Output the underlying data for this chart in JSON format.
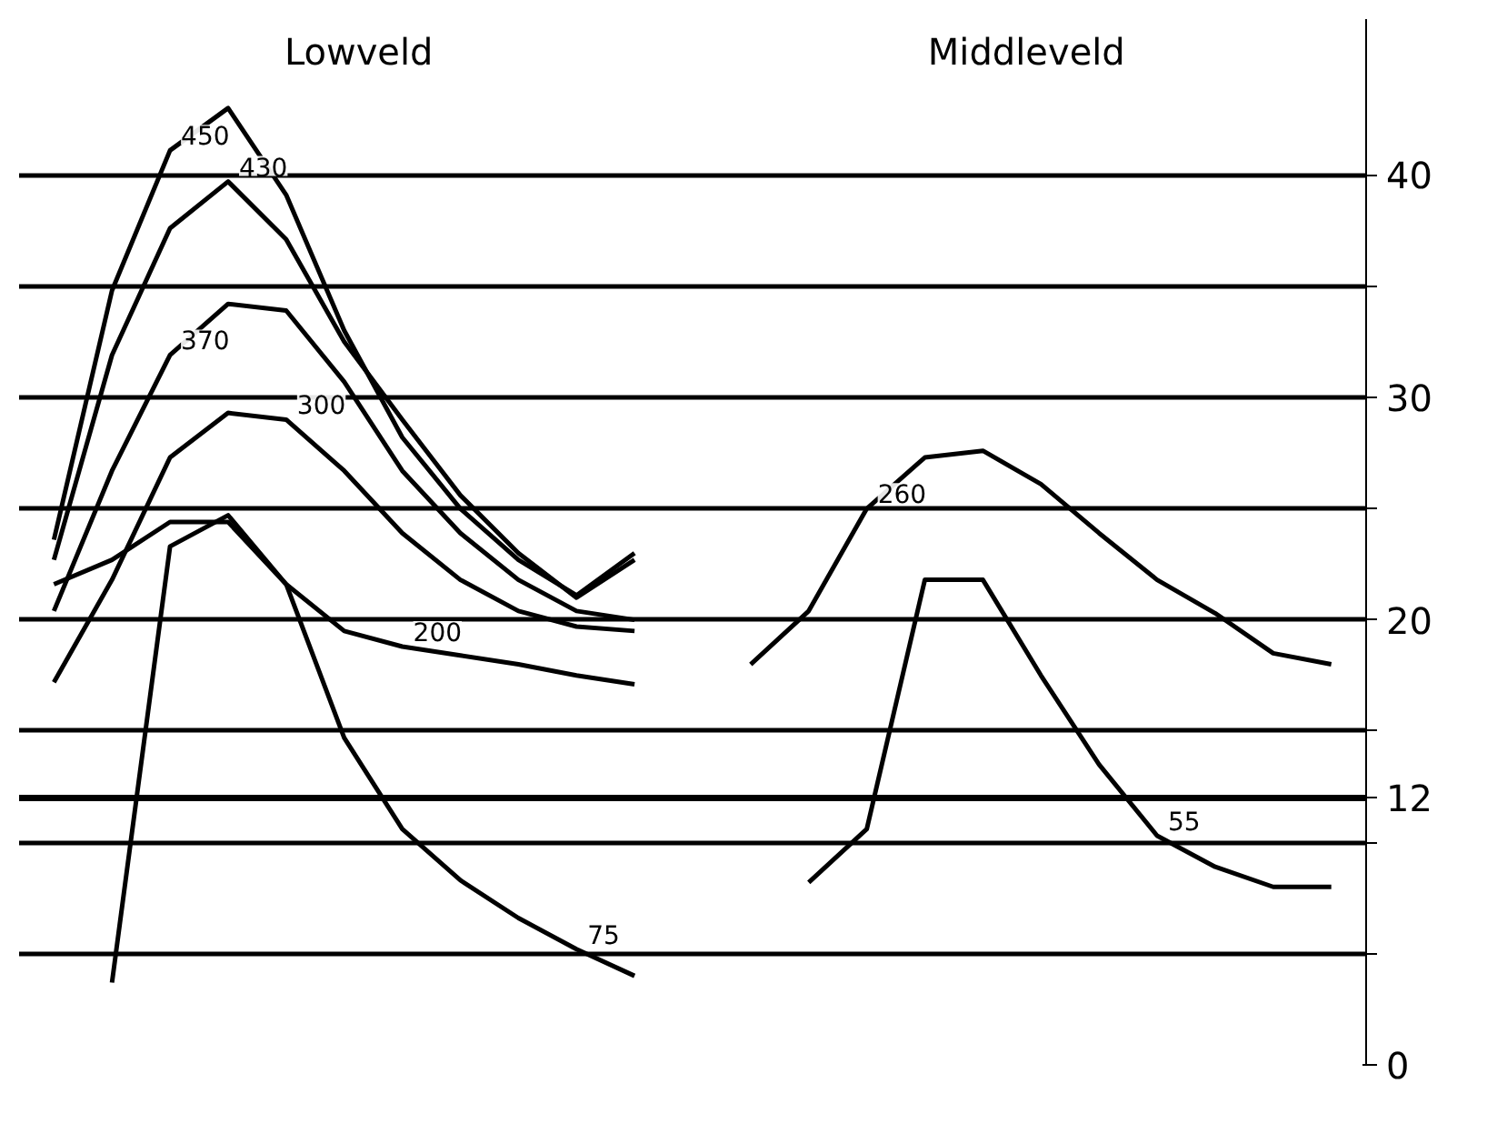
{
  "chart_data": {
    "type": "line",
    "categories": [
      null,
      null,
      null,
      null,
      null,
      null,
      null,
      null,
      null,
      null,
      null,
      null,
      null,
      null,
      null,
      null,
      null,
      null,
      null,
      null,
      null,
      null,
      null
    ],
    "ylim": [
      0,
      47
    ],
    "yticks": [
      0,
      {
        "value": 5,
        "label": null
      },
      {
        "value": 10,
        "label": null
      },
      12,
      {
        "value": 15,
        "label": null
      },
      20,
      {
        "value": 25,
        "label": null
      },
      30,
      {
        "value": 35,
        "label": null
      },
      40
    ],
    "grid": "y",
    "ref_lines": [
      {
        "axis": "y",
        "value": 12
      }
    ],
    "annotations": [
      "Lowveld",
      "Middleveld"
    ],
    "series": [
      {
        "name": "450",
        "color": "#000000",
        "values": [
          23.6,
          34.8,
          41.1,
          43.0,
          39.1,
          33.0,
          28.2,
          25.0,
          22.7,
          21.1,
          23.0,
          null,
          null,
          null,
          null,
          null,
          null,
          null,
          null,
          null,
          null,
          null,
          null
        ]
      },
      {
        "name": "430",
        "color": "#000000",
        "values": [
          22.7,
          31.9,
          37.6,
          39.7,
          37.1,
          32.5,
          29.0,
          25.6,
          23.0,
          21.0,
          22.7,
          null,
          null,
          null,
          null,
          null,
          null,
          null,
          null,
          null,
          null,
          null,
          null
        ]
      },
      {
        "name": "370",
        "color": "#000000",
        "values": [
          20.4,
          26.7,
          31.9,
          34.2,
          33.9,
          30.7,
          26.7,
          23.9,
          21.8,
          20.4,
          20.0,
          null,
          null,
          null,
          null,
          null,
          null,
          null,
          null,
          null,
          null,
          null,
          null
        ]
      },
      {
        "name": "300",
        "color": "#000000",
        "values": [
          17.2,
          21.8,
          27.3,
          29.3,
          29.0,
          26.7,
          23.9,
          21.8,
          20.4,
          19.7,
          19.5,
          null,
          null,
          null,
          null,
          null,
          null,
          null,
          null,
          null,
          null,
          null,
          null
        ]
      },
      {
        "name": "200",
        "color": "#000000",
        "values": [
          21.6,
          22.7,
          24.4,
          24.4,
          21.6,
          19.5,
          18.8,
          18.4,
          18.0,
          17.5,
          17.1,
          null,
          null,
          null,
          null,
          null,
          null,
          null,
          null,
          null,
          null,
          null,
          null
        ]
      },
      {
        "name": "75",
        "color": "#000000",
        "values": [
          null,
          3.7,
          23.3,
          24.7,
          21.6,
          14.7,
          10.6,
          8.3,
          6.6,
          5.2,
          4.0,
          null,
          null,
          null,
          null,
          null,
          null,
          null,
          null,
          null,
          null,
          null,
          null
        ]
      },
      {
        "name": "260",
        "color": "#000000",
        "values": [
          null,
          null,
          null,
          null,
          null,
          null,
          null,
          null,
          null,
          null,
          null,
          null,
          18.0,
          20.4,
          25.0,
          27.3,
          27.6,
          26.1,
          23.9,
          21.8,
          20.3,
          18.5,
          18.0
        ]
      },
      {
        "name": "55",
        "color": "#000000",
        "values": [
          null,
          null,
          null,
          null,
          null,
          null,
          null,
          null,
          null,
          null,
          null,
          null,
          null,
          8.2,
          10.6,
          21.8,
          21.8,
          17.5,
          13.5,
          10.3,
          8.9,
          8.0,
          8.0
        ]
      }
    ]
  }
}
